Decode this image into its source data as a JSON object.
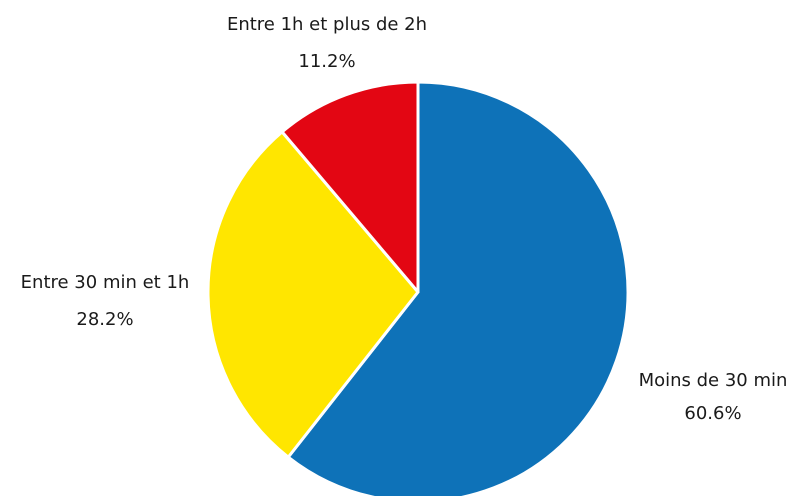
{
  "chart_data": {
    "type": "pie",
    "categories": [
      "Moins de 30 min",
      "Entre 30 min et 1h",
      "Entre 1h et plus de 2h"
    ],
    "values": [
      60.6,
      28.2,
      11.2
    ],
    "value_labels": [
      "60.6%",
      "28.2%",
      "11.2%"
    ],
    "colors": [
      "#0e72b8",
      "#ffe600",
      "#e30613"
    ]
  }
}
